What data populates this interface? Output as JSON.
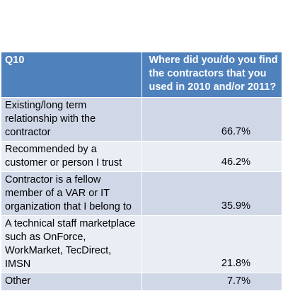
{
  "header": {
    "question_id": "Q10",
    "question_text": "Where did you/do you find the contractors that you used in 2010 and/or 2011?"
  },
  "rows": [
    {
      "label": "Existing/long term relationship with the contractor",
      "value": "66.7%"
    },
    {
      "label": "Recommended by a customer or person I trust",
      "value": "46.2%"
    },
    {
      "label": "Contractor is a fellow member of a VAR or IT organization that I belong to",
      "value": "35.9%"
    },
    {
      "label": "A technical staff marketplace such as OnForce, WorkMarket, TecDirect, IMSN",
      "value": "21.8%"
    },
    {
      "label": "Other",
      "value": "7.7%"
    }
  ],
  "colors": {
    "header_bg": "#4f81bd",
    "row_dark": "#d0d8e8",
    "row_light": "#e9edf4"
  }
}
